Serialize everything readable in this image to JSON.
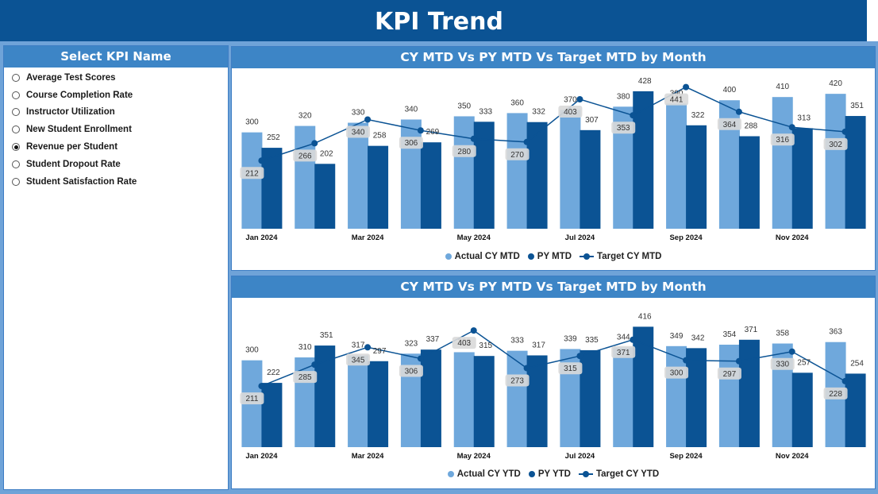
{
  "header": {
    "title": "KPI Trend"
  },
  "slicer": {
    "title": "Select KPI Name",
    "items": [
      {
        "label": "Average Test Scores",
        "selected": false
      },
      {
        "label": "Course Completion Rate",
        "selected": false
      },
      {
        "label": "Instructor Utilization",
        "selected": false
      },
      {
        "label": "New Student Enrollment",
        "selected": false
      },
      {
        "label": "Revenue per Student",
        "selected": true
      },
      {
        "label": "Student Dropout Rate",
        "selected": false
      },
      {
        "label": "Student Satisfaction Rate",
        "selected": false
      }
    ]
  },
  "colors": {
    "actual": "#6fa8dc",
    "py": "#0b5394",
    "target": "#0b5394",
    "header": "#0b5394",
    "panel_title": "#3d85c6"
  },
  "chart_data": [
    {
      "type": "bar",
      "title": "CY MTD Vs PY MTD Vs Target MTD by Month",
      "categories": [
        "Jan 2024",
        "Feb 2024",
        "Mar 2024",
        "Apr 2024",
        "May 2024",
        "Jun 2024",
        "Jul 2024",
        "Aug 2024",
        "Sep 2024",
        "Oct 2024",
        "Nov 2024",
        "Dec 2024"
      ],
      "tick_labels": [
        "Jan 2024",
        "",
        "Mar 2024",
        "",
        "May 2024",
        "",
        "Jul 2024",
        "",
        "Sep 2024",
        "",
        "Nov 2024",
        ""
      ],
      "ylim": [
        0,
        450
      ],
      "series": [
        {
          "name": "Actual CY MTD",
          "kind": "bar",
          "values": [
            300,
            320,
            330,
            340,
            350,
            360,
            370,
            380,
            390,
            400,
            410,
            420
          ]
        },
        {
          "name": "PY MTD",
          "kind": "bar",
          "values": [
            252,
            202,
            258,
            269,
            333,
            332,
            307,
            428,
            322,
            288,
            313,
            351
          ]
        },
        {
          "name": "Target CY MTD",
          "kind": "line",
          "values": [
            212,
            266,
            340,
            306,
            280,
            270,
            403,
            353,
            441,
            364,
            316,
            302
          ]
        }
      ],
      "legend": [
        "Actual CY MTD",
        "PY MTD",
        "Target CY MTD"
      ]
    },
    {
      "type": "bar",
      "title": "CY MTD Vs PY MTD Vs Target MTD by Month",
      "categories": [
        "Jan 2024",
        "Feb 2024",
        "Mar 2024",
        "Apr 2024",
        "May 2024",
        "Jun 2024",
        "Jul 2024",
        "Aug 2024",
        "Sep 2024",
        "Oct 2024",
        "Nov 2024",
        "Dec 2024"
      ],
      "tick_labels": [
        "Jan 2024",
        "",
        "Mar 2024",
        "",
        "May 2024",
        "",
        "Jul 2024",
        "",
        "Sep 2024",
        "",
        "Nov 2024",
        ""
      ],
      "ylim": [
        0,
        450
      ],
      "series": [
        {
          "name": "Actual CY YTD",
          "kind": "bar",
          "values": [
            300,
            310,
            317,
            323,
            328,
            333,
            339,
            344,
            349,
            354,
            358,
            363
          ]
        },
        {
          "name": "PY YTD",
          "kind": "bar",
          "values": [
            222,
            351,
            297,
            337,
            315,
            317,
            335,
            416,
            342,
            371,
            257,
            254
          ]
        },
        {
          "name": "Target CY YTD",
          "kind": "line",
          "values": [
            211,
            285,
            345,
            306,
            403,
            273,
            315,
            371,
            300,
            297,
            330,
            228
          ]
        }
      ],
      "legend": [
        "Actual CY YTD",
        "PY YTD",
        "Target CY YTD"
      ]
    }
  ]
}
